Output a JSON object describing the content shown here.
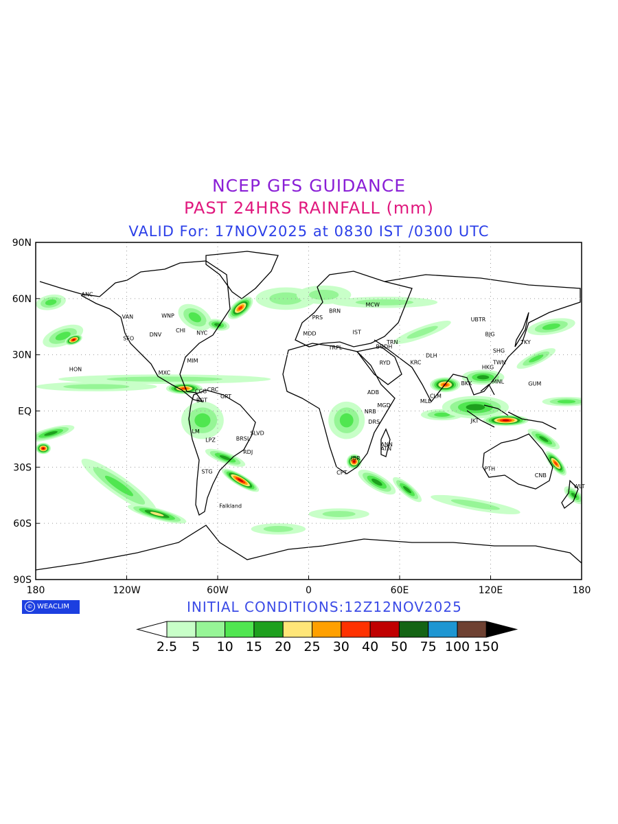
{
  "header": {
    "line1": "NCEP GFS GUIDANCE",
    "line2": "PAST 24HRS RAINFALL (mm)",
    "line3": "VALID For: 17NOV2025 at 0830 IST /0300 UTC"
  },
  "axes": {
    "lat_labels": [
      "90N",
      "60N",
      "30N",
      "EQ",
      "30S",
      "60S",
      "90S"
    ],
    "lon_labels": [
      "180",
      "120W",
      "60W",
      "0",
      "60E",
      "120E",
      "180"
    ]
  },
  "cities": [
    {
      "name": "ANC",
      "lon": -149.9,
      "lat": 61.2
    },
    {
      "name": "VAN",
      "lon": -123.1,
      "lat": 49.3
    },
    {
      "name": "SFO",
      "lon": -122.4,
      "lat": 37.8
    },
    {
      "name": "DNV",
      "lon": -105.0,
      "lat": 39.7
    },
    {
      "name": "WNP",
      "lon": -97.1,
      "lat": 49.9
    },
    {
      "name": "NYC",
      "lon": -74.0,
      "lat": 40.7
    },
    {
      "name": "CHI",
      "lon": -87.6,
      "lat": 41.9
    },
    {
      "name": "MIM",
      "lon": -80.2,
      "lat": 25.8
    },
    {
      "name": "HON",
      "lon": -157.9,
      "lat": 21.3
    },
    {
      "name": "MXC",
      "lon": -99.1,
      "lat": 19.4
    },
    {
      "name": "CCG",
      "lon": -75.0,
      "lat": 9.5
    },
    {
      "name": "CRC",
      "lon": -66.9,
      "lat": 10.5
    },
    {
      "name": "BGT",
      "lon": -74.1,
      "lat": 4.7
    },
    {
      "name": "GRT",
      "lon": -58.2,
      "lat": 6.8
    },
    {
      "name": "LM",
      "lon": -77.0,
      "lat": -12.0
    },
    {
      "name": "LPZ",
      "lon": -68.1,
      "lat": -16.5
    },
    {
      "name": "BRSL",
      "lon": -47.9,
      "lat": -15.8
    },
    {
      "name": "SLVD",
      "lon": -38.5,
      "lat": -12.9
    },
    {
      "name": "RDJ",
      "lon": -43.2,
      "lat": -22.9
    },
    {
      "name": "STG",
      "lon": -70.7,
      "lat": -33.4
    },
    {
      "name": "Falkland",
      "lon": -59.0,
      "lat": -51.7
    },
    {
      "name": "MCW",
      "lon": 37.6,
      "lat": 55.8
    },
    {
      "name": "BRN",
      "lon": 13.4,
      "lat": 52.5
    },
    {
      "name": "PRS",
      "lon": 2.3,
      "lat": 48.9
    },
    {
      "name": "MDD",
      "lon": -3.7,
      "lat": 40.4
    },
    {
      "name": "TRPL",
      "lon": 13.2,
      "lat": 32.9
    },
    {
      "name": "IST",
      "lon": 29.0,
      "lat": 41.0
    },
    {
      "name": "RYD",
      "lon": 46.7,
      "lat": 24.7
    },
    {
      "name": "BGDH",
      "lon": 44.4,
      "lat": 33.3
    },
    {
      "name": "TRN",
      "lon": 51.4,
      "lat": 35.7
    },
    {
      "name": "ADB",
      "lon": 38.7,
      "lat": 9.0
    },
    {
      "name": "NRB",
      "lon": 36.8,
      "lat": -1.3
    },
    {
      "name": "MGD",
      "lon": 45.3,
      "lat": 2.0
    },
    {
      "name": "DRS",
      "lon": 39.3,
      "lat": -6.8
    },
    {
      "name": "ANN",
      "lon": 47.5,
      "lat": -18.9
    },
    {
      "name": "ATN",
      "lon": 47.5,
      "lat": -21.0
    },
    {
      "name": "JBR",
      "lon": 28.0,
      "lat": -26.2
    },
    {
      "name": "CPT",
      "lon": 18.4,
      "lat": -33.9
    },
    {
      "name": "DLH",
      "lon": 77.2,
      "lat": 28.6
    },
    {
      "name": "KRC",
      "lon": 67.0,
      "lat": 24.9
    },
    {
      "name": "MLE",
      "lon": 73.5,
      "lat": 4.2
    },
    {
      "name": "CLM",
      "lon": 79.9,
      "lat": 6.9
    },
    {
      "name": "UBTR",
      "lon": 106.9,
      "lat": 47.9
    },
    {
      "name": "BJG",
      "lon": 116.4,
      "lat": 39.9
    },
    {
      "name": "SHG",
      "lon": 121.5,
      "lat": 31.2
    },
    {
      "name": "TKY",
      "lon": 139.7,
      "lat": 35.7
    },
    {
      "name": "TWN",
      "lon": 121.5,
      "lat": 25.0
    },
    {
      "name": "HKG",
      "lon": 114.2,
      "lat": 22.3
    },
    {
      "name": "MNL",
      "lon": 121.0,
      "lat": 14.6
    },
    {
      "name": "GUM",
      "lon": 144.8,
      "lat": 13.5
    },
    {
      "name": "BKK",
      "lon": 100.5,
      "lat": 13.8
    },
    {
      "name": "JKT",
      "lon": 106.8,
      "lat": -6.2
    },
    {
      "name": "PTH",
      "lon": 115.9,
      "lat": -31.9
    },
    {
      "name": "CNB",
      "lon": 149.1,
      "lat": -35.3
    },
    {
      "name": "WLT",
      "lon": 174.8,
      "lat": -41.3
    }
  ],
  "footer": {
    "logo_text": "WEACLIM",
    "initial_conditions": "INITIAL CONDITIONS:12Z12NOV2025"
  },
  "legend": {
    "labels": [
      "2.5",
      "5",
      "10",
      "15",
      "20",
      "25",
      "30",
      "40",
      "50",
      "75",
      "100",
      "150"
    ],
    "colors": [
      "#c8ffc8",
      "#96f596",
      "#50e650",
      "#1ea01e",
      "#ffe678",
      "#ffa000",
      "#ff3200",
      "#c00000",
      "#146414",
      "#1e96d2",
      "#6e4132"
    ]
  },
  "chart_data": {
    "type": "heatmap",
    "title": "NCEP GFS GUIDANCE",
    "subtitle": "PAST 24HRS RAINFALL (mm)",
    "lon_range": [
      -180,
      180
    ],
    "lat_range": [
      -90,
      90
    ],
    "grid": true,
    "rain_bands": [
      {
        "lon": -162,
        "lat": 40,
        "rx": 14,
        "ry": 5,
        "rot": -20,
        "level": 2
      },
      {
        "lon": -155,
        "lat": 38,
        "rx": 6,
        "ry": 2.5,
        "rot": -20,
        "level": 7
      },
      {
        "lon": -170,
        "lat": 58,
        "rx": 10,
        "ry": 4,
        "rot": -10,
        "level": 2
      },
      {
        "lon": -95,
        "lat": 17,
        "rx": 70,
        "ry": 2.5,
        "rot": 0,
        "level": 1
      },
      {
        "lon": -140,
        "lat": 13,
        "rx": 40,
        "ry": 2.5,
        "rot": 0,
        "level": 1
      },
      {
        "lon": -82,
        "lat": 12,
        "rx": 12,
        "ry": 3,
        "rot": 0,
        "level": 6
      },
      {
        "lon": -75,
        "lat": 50,
        "rx": 12,
        "ry": 6,
        "rot": 30,
        "level": 2
      },
      {
        "lon": -45,
        "lat": 55,
        "rx": 10,
        "ry": 4,
        "rot": -40,
        "level": 6
      },
      {
        "lon": -60,
        "lat": 46,
        "rx": 8,
        "ry": 3,
        "rot": 10,
        "level": 3
      },
      {
        "lon": -170,
        "lat": -12,
        "rx": 16,
        "ry": 3,
        "rot": -15,
        "level": 3
      },
      {
        "lon": -175,
        "lat": -20,
        "rx": 5,
        "ry": 3,
        "rot": 0,
        "level": 7
      },
      {
        "lon": -125,
        "lat": -40,
        "rx": 30,
        "ry": 5,
        "rot": 35,
        "level": 2
      },
      {
        "lon": -100,
        "lat": -55,
        "rx": 20,
        "ry": 3,
        "rot": 15,
        "level": 4
      },
      {
        "lon": -45,
        "lat": -37,
        "rx": 14,
        "ry": 3,
        "rot": 30,
        "level": 7
      },
      {
        "lon": -55,
        "lat": -25,
        "rx": 14,
        "ry": 3,
        "rot": 20,
        "level": 3
      },
      {
        "lon": -70,
        "lat": -5,
        "rx": 14,
        "ry": 10,
        "rot": 0,
        "level": 2
      },
      {
        "lon": -15,
        "lat": 60,
        "rx": 20,
        "ry": 6,
        "rot": 0,
        "level": 1
      },
      {
        "lon": 10,
        "lat": 62,
        "rx": 18,
        "ry": 5,
        "rot": 0,
        "level": 1
      },
      {
        "lon": 50,
        "lat": 58,
        "rx": 35,
        "ry": 3,
        "rot": 0,
        "level": 1
      },
      {
        "lon": 75,
        "lat": 42,
        "rx": 20,
        "ry": 3,
        "rot": -20,
        "level": 1
      },
      {
        "lon": 25,
        "lat": -5,
        "rx": 12,
        "ry": 10,
        "rot": 0,
        "level": 2
      },
      {
        "lon": 30,
        "lat": -27,
        "rx": 5,
        "ry": 4,
        "rot": 0,
        "level": 7
      },
      {
        "lon": 45,
        "lat": -38,
        "rx": 14,
        "ry": 4,
        "rot": 30,
        "level": 3
      },
      {
        "lon": 65,
        "lat": -42,
        "rx": 12,
        "ry": 3,
        "rot": 40,
        "level": 3
      },
      {
        "lon": 90,
        "lat": 14,
        "rx": 10,
        "ry": 4,
        "rot": 0,
        "level": 6
      },
      {
        "lon": 88,
        "lat": -2,
        "rx": 14,
        "ry": 3,
        "rot": 0,
        "level": 2
      },
      {
        "lon": 110,
        "lat": 2,
        "rx": 22,
        "ry": 6,
        "rot": 0,
        "level": 3
      },
      {
        "lon": 130,
        "lat": -5,
        "rx": 15,
        "ry": 3,
        "rot": 0,
        "level": 7
      },
      {
        "lon": 115,
        "lat": 18,
        "rx": 14,
        "ry": 4,
        "rot": 0,
        "level": 3
      },
      {
        "lon": 150,
        "lat": 28,
        "rx": 14,
        "ry": 3,
        "rot": -25,
        "level": 2
      },
      {
        "lon": 160,
        "lat": 45,
        "rx": 16,
        "ry": 4,
        "rot": -10,
        "level": 2
      },
      {
        "lon": 170,
        "lat": 5,
        "rx": 16,
        "ry": 2.5,
        "rot": 0,
        "level": 2
      },
      {
        "lon": 163,
        "lat": -28,
        "rx": 10,
        "ry": 3,
        "rot": 50,
        "level": 6
      },
      {
        "lon": 155,
        "lat": -15,
        "rx": 12,
        "ry": 3,
        "rot": 30,
        "level": 3
      },
      {
        "lon": 175,
        "lat": -45,
        "rx": 8,
        "ry": 3,
        "rot": 40,
        "level": 3
      },
      {
        "lon": 110,
        "lat": -50,
        "rx": 30,
        "ry": 3,
        "rot": 10,
        "level": 1
      },
      {
        "lon": 20,
        "lat": -55,
        "rx": 20,
        "ry": 3,
        "rot": 0,
        "level": 1
      },
      {
        "lon": -20,
        "lat": -63,
        "rx": 18,
        "ry": 3,
        "rot": 0,
        "level": 1
      }
    ]
  }
}
